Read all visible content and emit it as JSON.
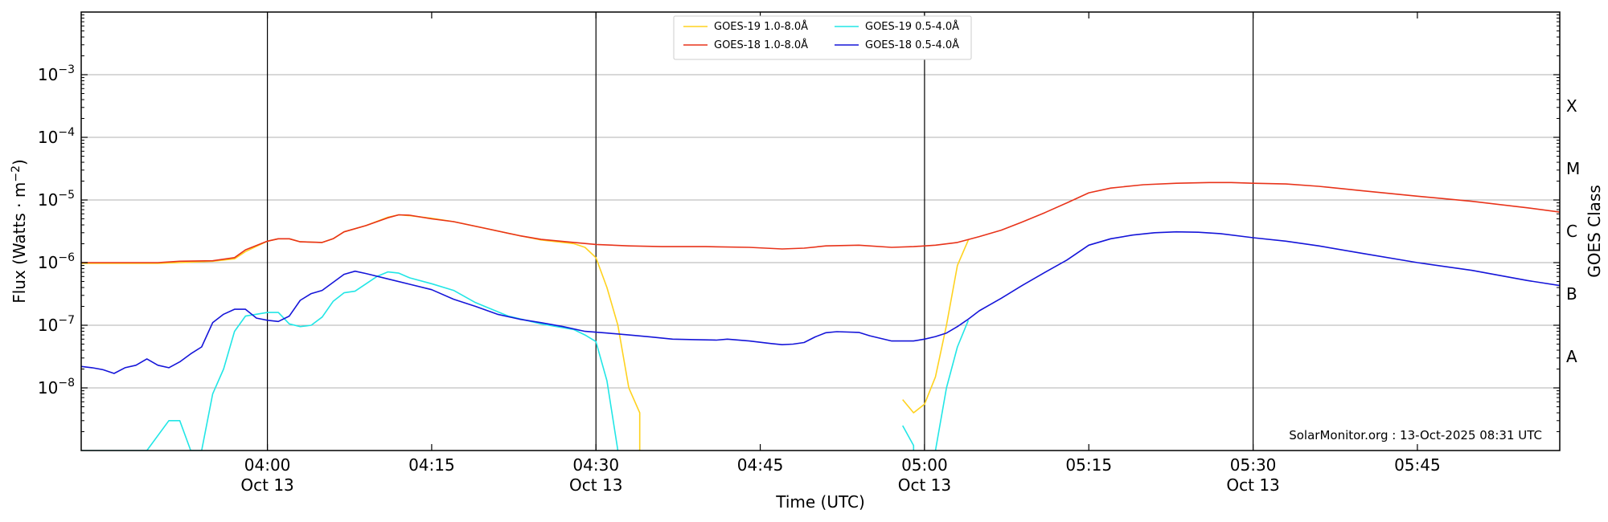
{
  "chart_data": {
    "type": "line",
    "xlabel": "Time (UTC)",
    "ylabel": "Flux (Watts · m",
    "ylabel_sup": "−2",
    "ylabel_close": ")",
    "right_label": "GOES Class",
    "watermark": "SolarMonitor.org : 13-Oct-2025 08:31 UTC",
    "y_scale": "log",
    "ylim": [
      1e-09,
      0.01
    ],
    "xlim": [
      "03:43",
      "05:58"
    ],
    "grid": "horizontal",
    "legend_position": "top-center",
    "x_ticks": [
      {
        "time": "04:00",
        "label": "04:00",
        "sub": "Oct 13",
        "vline": true
      },
      {
        "time": "04:15",
        "label": "04:15",
        "sub": "",
        "vline": false
      },
      {
        "time": "04:30",
        "label": "04:30",
        "sub": "Oct 13",
        "vline": true
      },
      {
        "time": "04:45",
        "label": "04:45",
        "sub": "",
        "vline": false
      },
      {
        "time": "05:00",
        "label": "05:00",
        "sub": "Oct 13",
        "vline": true
      },
      {
        "time": "05:15",
        "label": "05:15",
        "sub": "",
        "vline": false
      },
      {
        "time": "05:30",
        "label": "05:30",
        "sub": "Oct 13",
        "vline": true
      },
      {
        "time": "05:45",
        "label": "05:45",
        "sub": "",
        "vline": false
      }
    ],
    "y_ticks": [
      {
        "exp": -8,
        "label_base": "10",
        "label_exp": "−8"
      },
      {
        "exp": -7,
        "label_base": "10",
        "label_exp": "−7"
      },
      {
        "exp": -6,
        "label_base": "10",
        "label_exp": "−6"
      },
      {
        "exp": -5,
        "label_base": "10",
        "label_exp": "−5"
      },
      {
        "exp": -4,
        "label_base": "10",
        "label_exp": "−4"
      },
      {
        "exp": -3,
        "label_base": "10",
        "label_exp": "−3"
      }
    ],
    "goes_classes": [
      {
        "label": "A",
        "exp": -8
      },
      {
        "label": "B",
        "exp": -7
      },
      {
        "label": "C",
        "exp": -6
      },
      {
        "label": "M",
        "exp": -5
      },
      {
        "label": "X",
        "exp": -4
      }
    ],
    "legend": {
      "col1": [
        "GOES-19 1.0-8.0Å",
        "GOES-18 1.0-8.0Å"
      ],
      "col2": [
        "GOES-19 0.5-4.0Å",
        "GOES-18 0.5-4.0Å"
      ]
    },
    "series": [
      {
        "name": "GOES-19 1.0-8.0Å",
        "color": "#FFD21F",
        "segments": [
          [
            [
              "03:43",
              9.7e-07
            ],
            [
              "03:50",
              9.7e-07
            ],
            [
              "03:52",
              1e-06
            ],
            [
              "03:55",
              1.05e-06
            ],
            [
              "03:57",
              1.15e-06
            ],
            [
              "03:58",
              1.5e-06
            ],
            [
              "04:00",
              2.2e-06
            ],
            [
              "04:01",
              2.4e-06
            ],
            [
              "04:02",
              2.4e-06
            ],
            [
              "04:03",
              2.15e-06
            ],
            [
              "04:05",
              2.1e-06
            ],
            [
              "04:06",
              2.4e-06
            ],
            [
              "04:07",
              3.1e-06
            ],
            [
              "04:09",
              3.9e-06
            ],
            [
              "04:11",
              5.3e-06
            ],
            [
              "04:12",
              5.8e-06
            ],
            [
              "04:13",
              5.6e-06
            ],
            [
              "04:15",
              5.1e-06
            ],
            [
              "04:17",
              4.5e-06
            ],
            [
              "04:20",
              3.5e-06
            ],
            [
              "04:23",
              2.7e-06
            ],
            [
              "04:25",
              2.3e-06
            ],
            [
              "04:27",
              2.1e-06
            ],
            [
              "04:28",
              2e-06
            ],
            [
              "04:29",
              1.75e-06
            ],
            [
              "04:30",
              1.2e-06
            ],
            [
              "04:31",
              4e-07
            ],
            [
              "04:32",
              1e-07
            ],
            [
              "04:33",
              1e-08
            ],
            [
              "04:34",
              4e-09
            ],
            [
              "04:34",
              1e-09
            ]
          ],
          [
            [
              "04:58",
              6.5e-09
            ],
            [
              "04:59",
              4e-09
            ],
            [
              "05:00",
              5.5e-09
            ],
            [
              "05:01",
              1.5e-08
            ],
            [
              "05:02",
              1e-07
            ],
            [
              "05:03",
              9e-07
            ],
            [
              "05:04",
              2.3e-06
            ]
          ]
        ]
      },
      {
        "name": "GOES-18 1.0-8.0Å",
        "color": "#E8331A",
        "segments": [
          [
            [
              "03:43",
              1e-06
            ],
            [
              "03:47",
              1e-06
            ],
            [
              "03:50",
              1e-06
            ],
            [
              "03:52",
              1.05e-06
            ],
            [
              "03:55",
              1.07e-06
            ],
            [
              "03:57",
              1.2e-06
            ],
            [
              "03:58",
              1.6e-06
            ],
            [
              "04:00",
              2.2e-06
            ],
            [
              "04:01",
              2.4e-06
            ],
            [
              "04:02",
              2.4e-06
            ],
            [
              "04:03",
              2.15e-06
            ],
            [
              "04:05",
              2.1e-06
            ],
            [
              "04:06",
              2.4e-06
            ],
            [
              "04:07",
              3.1e-06
            ],
            [
              "04:09",
              3.9e-06
            ],
            [
              "04:11",
              5.2e-06
            ],
            [
              "04:12",
              5.8e-06
            ],
            [
              "04:13",
              5.7e-06
            ],
            [
              "04:15",
              5e-06
            ],
            [
              "04:17",
              4.5e-06
            ],
            [
              "04:20",
              3.5e-06
            ],
            [
              "04:23",
              2.7e-06
            ],
            [
              "04:25",
              2.35e-06
            ],
            [
              "04:28",
              2.1e-06
            ],
            [
              "04:30",
              1.95e-06
            ],
            [
              "04:33",
              1.85e-06
            ],
            [
              "04:36",
              1.8e-06
            ],
            [
              "04:40",
              1.8e-06
            ],
            [
              "04:44",
              1.75e-06
            ],
            [
              "04:47",
              1.65e-06
            ],
            [
              "04:49",
              1.7e-06
            ],
            [
              "04:51",
              1.85e-06
            ],
            [
              "04:54",
              1.9e-06
            ],
            [
              "04:57",
              1.75e-06
            ],
            [
              "04:59",
              1.8e-06
            ],
            [
              "05:01",
              1.9e-06
            ],
            [
              "05:03",
              2.1e-06
            ],
            [
              "05:05",
              2.6e-06
            ],
            [
              "05:07",
              3.3e-06
            ],
            [
              "05:09",
              4.5e-06
            ],
            [
              "05:11",
              6.3e-06
            ],
            [
              "05:13",
              9e-06
            ],
            [
              "05:15",
              1.3e-05
            ],
            [
              "05:17",
              1.55e-05
            ],
            [
              "05:20",
              1.75e-05
            ],
            [
              "05:23",
              1.85e-05
            ],
            [
              "05:26",
              1.9e-05
            ],
            [
              "05:28",
              1.9e-05
            ],
            [
              "05:30",
              1.85e-05
            ],
            [
              "05:33",
              1.8e-05
            ],
            [
              "05:36",
              1.65e-05
            ],
            [
              "05:40",
              1.4e-05
            ],
            [
              "05:45",
              1.15e-05
            ],
            [
              "05:50",
              9.5e-06
            ],
            [
              "05:55",
              7.5e-06
            ],
            [
              "05:58",
              6.4e-06
            ]
          ]
        ]
      },
      {
        "name": "GOES-19 0.5-4.0Å",
        "color": "#22E6E6",
        "segments": [
          [
            [
              "03:43",
              1e-09
            ],
            [
              "03:49",
              1e-09
            ],
            [
              "03:51",
              3e-09
            ],
            [
              "03:52",
              3e-09
            ],
            [
              "03:53",
              1e-09
            ],
            [
              "03:54",
              1e-09
            ],
            [
              "03:55",
              8e-09
            ],
            [
              "03:56",
              2e-08
            ],
            [
              "03:57",
              8e-08
            ],
            [
              "03:58",
              1.4e-07
            ],
            [
              "04:00",
              1.6e-07
            ],
            [
              "04:01",
              1.6e-07
            ],
            [
              "04:02",
              1.05e-07
            ],
            [
              "04:03",
              9.5e-08
            ],
            [
              "04:04",
              1e-07
            ],
            [
              "04:05",
              1.35e-07
            ],
            [
              "04:06",
              2.4e-07
            ],
            [
              "04:07",
              3.3e-07
            ],
            [
              "04:08",
              3.5e-07
            ],
            [
              "04:10",
              6e-07
            ],
            [
              "04:11",
              7.1e-07
            ],
            [
              "04:12",
              6.8e-07
            ],
            [
              "04:13",
              5.7e-07
            ],
            [
              "04:15",
              4.6e-07
            ],
            [
              "04:17",
              3.6e-07
            ],
            [
              "04:19",
              2.3e-07
            ],
            [
              "04:22",
              1.4e-07
            ],
            [
              "04:25",
              1.05e-07
            ],
            [
              "04:28",
              8.5e-08
            ],
            [
              "04:29",
              7e-08
            ],
            [
              "04:30",
              5.5e-08
            ],
            [
              "04:31",
              1.3e-08
            ],
            [
              "04:32",
              1e-09
            ]
          ],
          [
            [
              "04:58",
              2.5e-09
            ],
            [
              "04:59",
              1.2e-09
            ],
            [
              "04:59",
              1e-09
            ]
          ],
          [
            [
              "05:01",
              1e-09
            ],
            [
              "05:02",
              1e-08
            ],
            [
              "05:03",
              4.5e-08
            ],
            [
              "05:04",
              1.2e-07
            ]
          ]
        ]
      },
      {
        "name": "GOES-18 0.5-4.0Å",
        "color": "#1515D9",
        "segments": [
          [
            [
              "03:43",
              2.2e-08
            ],
            [
              "03:44",
              2.1e-08
            ],
            [
              "03:45",
              1.95e-08
            ],
            [
              "03:46",
              1.7e-08
            ],
            [
              "03:47",
              2.1e-08
            ],
            [
              "03:48",
              2.3e-08
            ],
            [
              "03:49",
              2.9e-08
            ],
            [
              "03:50",
              2.3e-08
            ],
            [
              "03:51",
              2.1e-08
            ],
            [
              "03:52",
              2.6e-08
            ],
            [
              "03:53",
              3.5e-08
            ],
            [
              "03:54",
              4.5e-08
            ],
            [
              "03:55",
              1.1e-07
            ],
            [
              "03:56",
              1.5e-07
            ],
            [
              "03:57",
              1.8e-07
            ],
            [
              "03:58",
              1.8e-07
            ],
            [
              "03:59",
              1.3e-07
            ],
            [
              "04:00",
              1.2e-07
            ],
            [
              "04:01",
              1.15e-07
            ],
            [
              "04:02",
              1.4e-07
            ],
            [
              "04:03",
              2.5e-07
            ],
            [
              "04:04",
              3.2e-07
            ],
            [
              "04:05",
              3.6e-07
            ],
            [
              "04:07",
              6.5e-07
            ],
            [
              "04:08",
              7.3e-07
            ],
            [
              "04:09",
              6.7e-07
            ],
            [
              "04:11",
              5.5e-07
            ],
            [
              "04:13",
              4.5e-07
            ],
            [
              "04:15",
              3.7e-07
            ],
            [
              "04:17",
              2.6e-07
            ],
            [
              "04:19",
              2e-07
            ],
            [
              "04:21",
              1.5e-07
            ],
            [
              "04:23",
              1.25e-07
            ],
            [
              "04:25",
              1.1e-07
            ],
            [
              "04:27",
              9.5e-08
            ],
            [
              "04:29",
              8e-08
            ],
            [
              "04:31",
              7.5e-08
            ],
            [
              "04:33",
              7e-08
            ],
            [
              "04:35",
              6.5e-08
            ],
            [
              "04:37",
              6e-08
            ],
            [
              "04:39",
              5.9e-08
            ],
            [
              "04:41",
              5.8e-08
            ],
            [
              "04:42",
              6e-08
            ],
            [
              "04:44",
              5.6e-08
            ],
            [
              "04:46",
              5.1e-08
            ],
            [
              "04:47",
              4.9e-08
            ],
            [
              "04:48",
              5e-08
            ],
            [
              "04:49",
              5.3e-08
            ],
            [
              "04:50",
              6.5e-08
            ],
            [
              "04:51",
              7.6e-08
            ],
            [
              "04:52",
              7.9e-08
            ],
            [
              "04:54",
              7.7e-08
            ],
            [
              "04:55",
              6.8e-08
            ],
            [
              "04:57",
              5.6e-08
            ],
            [
              "04:59",
              5.6e-08
            ],
            [
              "05:00",
              6e-08
            ],
            [
              "05:01",
              6.6e-08
            ],
            [
              "05:02",
              7.5e-08
            ],
            [
              "05:03",
              9.5e-08
            ],
            [
              "05:04",
              1.25e-07
            ],
            [
              "05:05",
              1.7e-07
            ],
            [
              "05:07",
              2.7e-07
            ],
            [
              "05:09",
              4.4e-07
            ],
            [
              "05:11",
              7e-07
            ],
            [
              "05:13",
              1.1e-06
            ],
            [
              "05:15",
              1.9e-06
            ],
            [
              "05:17",
              2.4e-06
            ],
            [
              "05:19",
              2.75e-06
            ],
            [
              "05:21",
              3e-06
            ],
            [
              "05:23",
              3.1e-06
            ],
            [
              "05:25",
              3.05e-06
            ],
            [
              "05:27",
              2.9e-06
            ],
            [
              "05:30",
              2.5e-06
            ],
            [
              "05:33",
              2.2e-06
            ],
            [
              "05:36",
              1.85e-06
            ],
            [
              "05:40",
              1.4e-06
            ],
            [
              "05:45",
              1e-06
            ],
            [
              "05:50",
              7.5e-07
            ],
            [
              "05:55",
              5.2e-07
            ],
            [
              "05:58",
              4.3e-07
            ]
          ]
        ]
      }
    ]
  }
}
